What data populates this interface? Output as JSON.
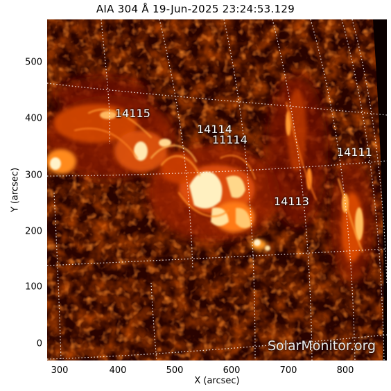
{
  "title": "AIA 304 Å 19-Jun-2025 23:24:53.129",
  "axes": {
    "xlabel": "X (arcsec)",
    "ylabel": "Y (arcsec)",
    "xticks": [
      "300",
      "400",
      "500",
      "600",
      "700",
      "800"
    ],
    "yticks": [
      "0",
      "100",
      "200",
      "300",
      "400",
      "500"
    ]
  },
  "regions": [
    "14115",
    "14114",
    "11114",
    "14113",
    "14111"
  ],
  "watermark": "SolarMonitor.org",
  "colors": {
    "background": "#140100",
    "colormap_dark": "#3a0400",
    "colormap_mid": "#b52a00",
    "colormap_bright": "#ff8a1a",
    "colormap_peak": "#fff2c8",
    "grid": "#ffffff"
  }
}
